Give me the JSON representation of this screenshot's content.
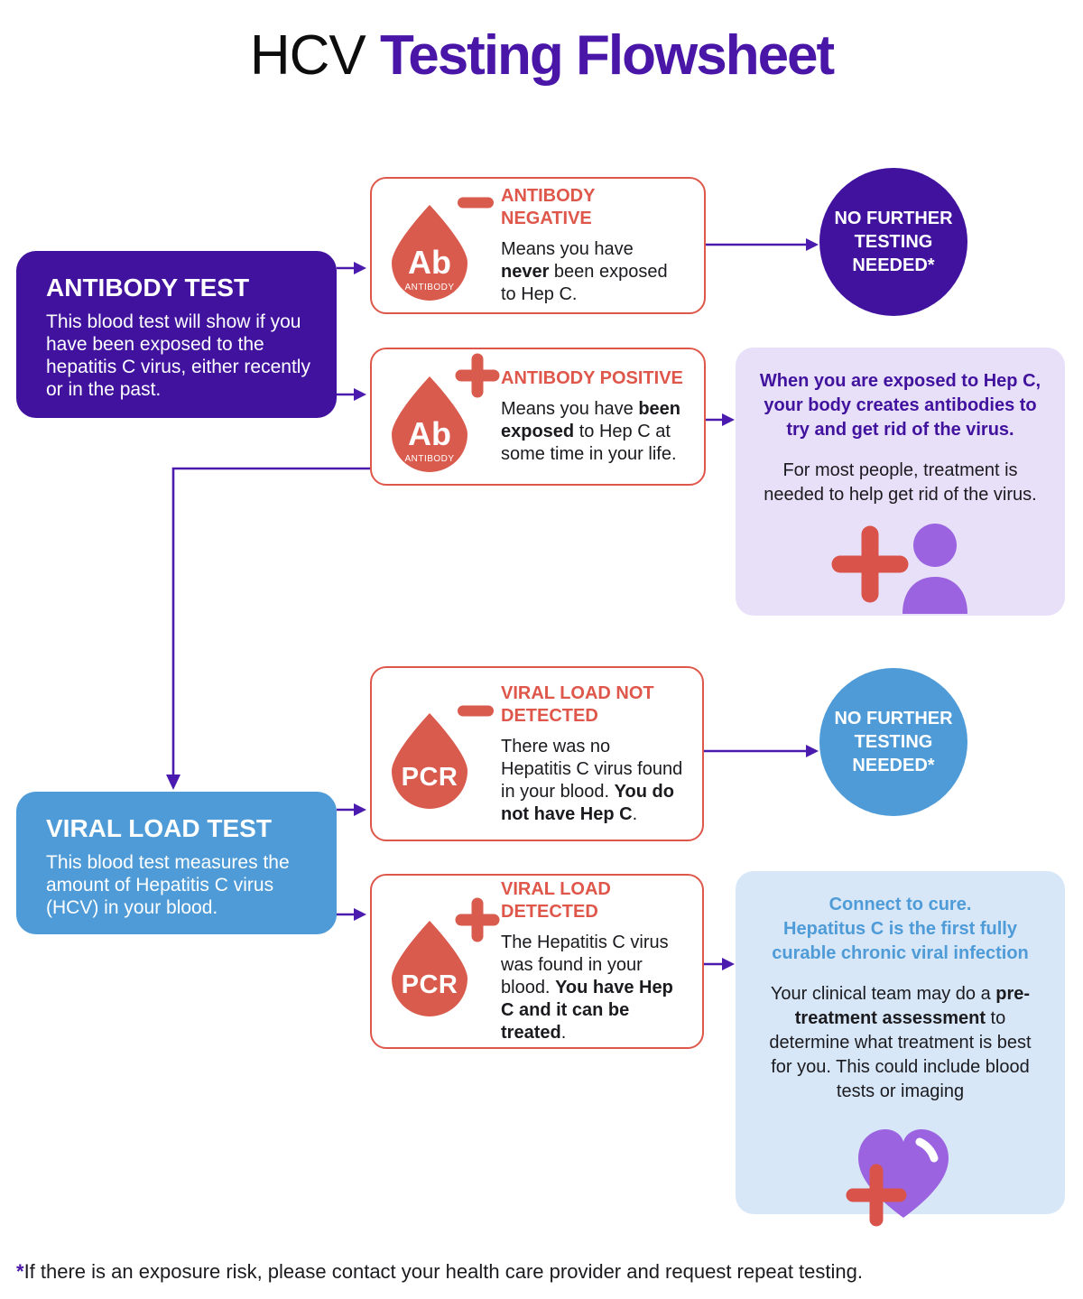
{
  "title": {
    "prefix": "HCV ",
    "highlight": "Testing Flowsheet"
  },
  "antibody_test_box": {
    "title": "ANTIBODY TEST",
    "body": "This blood test will show if you have been exposed to the hepatitis C virus, either recently or in the past."
  },
  "viral_load_test_box": {
    "title": "VIRAL LOAD TEST",
    "body": "This blood test measures the amount of Hepatitis C virus (HCV) in your blood."
  },
  "cards": {
    "ab_negative": {
      "heading": "ANTIBODY NEGATIVE",
      "drop_label": "Ab",
      "drop_sublabel": "ANTIBODY",
      "sign": "minus",
      "body": [
        {
          "text": "Means you have "
        },
        {
          "text": "never",
          "bold": true
        },
        {
          "text": " been exposed to Hep C."
        }
      ]
    },
    "ab_positive": {
      "heading": "ANTIBODY POSITIVE",
      "drop_label": "Ab",
      "drop_sublabel": "ANTIBODY",
      "sign": "plus",
      "body": [
        {
          "text": "Means you have "
        },
        {
          "text": "been exposed",
          "bold": true
        },
        {
          "text": " to Hep C at some time in your life."
        }
      ]
    },
    "pcr_negative": {
      "heading": "VIRAL LOAD NOT DETECTED",
      "drop_label": "PCR",
      "sign": "minus",
      "body": [
        {
          "text": "There was no Hepatitis C virus found in your blood. "
        },
        {
          "text": "You do not have Hep C",
          "bold": true
        },
        {
          "text": "."
        }
      ]
    },
    "pcr_positive": {
      "heading": "VIRAL LOAD DETECTED",
      "drop_label": "PCR",
      "sign": "plus",
      "body": [
        {
          "text": "The Hepatitis C virus was found in your blood. "
        },
        {
          "text": "You have Hep C and it can be treated",
          "bold": true
        },
        {
          "text": "."
        }
      ]
    }
  },
  "outcome_circles": {
    "antibody": {
      "label": "NO FURTHER TESTING NEEDED*"
    },
    "viral": {
      "label": "NO FURTHER TESTING NEEDED*"
    }
  },
  "info_boxes": {
    "antibody_positive": {
      "heading": "When you are exposed to Hep C, your body creates antibodies to try and get rid of the virus.",
      "body": [
        {
          "text": "For most people, treatment is needed to help get rid of the virus."
        }
      ],
      "icon": "person-with-medical-cross-icon"
    },
    "viral_detected": {
      "heading": "Connect to cure.\nHepatitus C is the first fully curable chronic viral infection",
      "body": [
        {
          "text": "Your clinical team may do a "
        },
        {
          "text": "pre-treatment assessment",
          "bold": true
        },
        {
          "text": " to determine what treatment is best for you. This could include blood tests or imaging"
        }
      ],
      "icon": "heart-with-medical-cross-icon"
    }
  },
  "footnote": {
    "asterisk": "*",
    "text": "If there is an exposure risk, please contact your health care provider and request repeat testing."
  },
  "colors": {
    "purple": "#40129E",
    "title_purple": "#4A16A8",
    "arrow": "#4A1BAE",
    "blue": "#4E9BD7",
    "red": "#DE574A",
    "drop_red": "#D95B4D",
    "cross_red": "#D9534B",
    "light_purple": "#E8E0F8",
    "light_blue": "#D7E7F8",
    "person_purple": "#9B63DF"
  }
}
